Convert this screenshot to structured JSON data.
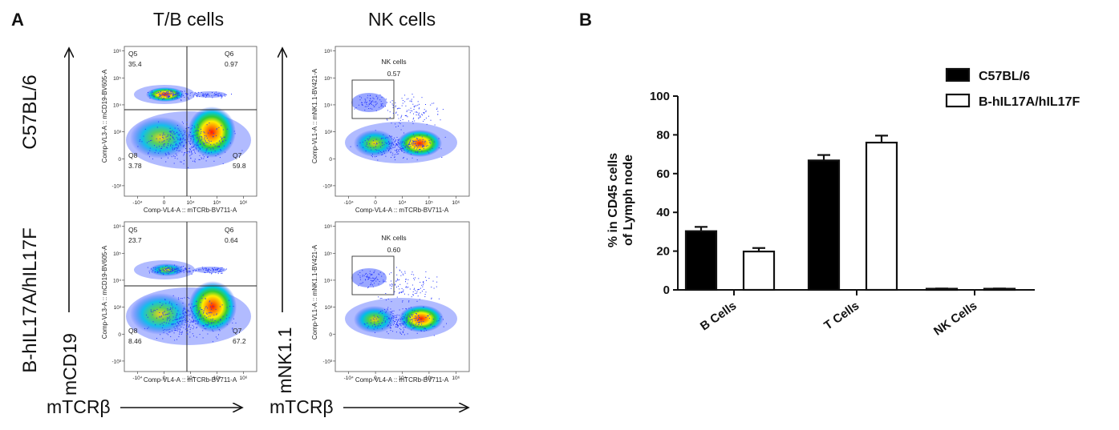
{
  "panel_a": {
    "letter": "A",
    "col_titles": [
      "T/B cells",
      "NK cells"
    ],
    "row_titles": [
      "C57BL/6",
      "B-hIL17A/hIL17F"
    ],
    "left_axis_y": "mCD19",
    "left_axis_x": "mTCRβ",
    "right_axis_y": "mNK1.1",
    "right_axis_x": "mTCRβ",
    "tb_plot": {
      "x_axis_label": "Comp-VL4-A :: mTCRb-BV711-A",
      "y_axis_label": "Comp-VL3-A :: mCD19-BV605-A",
      "x_ticks": [
        "-10⁴",
        "0",
        "10⁴",
        "10⁵",
        "10⁶"
      ],
      "y_ticks": [
        "10⁶",
        "10⁵",
        "10⁴",
        "10³",
        "0",
        "-10³"
      ]
    },
    "nk_plot": {
      "x_axis_label": "Comp-VL4-A :: mTCRb-BV711-A",
      "y_axis_label": "Comp-VL1-A :: mNK1.1-BV421-A",
      "gate_name": "NK cells",
      "x_ticks": [
        "-10⁴",
        "0",
        "10⁴",
        "10⁵",
        "10⁶"
      ],
      "y_ticks": [
        "10⁶",
        "10⁵",
        "10⁴",
        "10³",
        "0",
        "-10³"
      ]
    },
    "rows": [
      {
        "q5": {
          "name": "Q5",
          "value": "35.4"
        },
        "q6": {
          "name": "Q6",
          "value": "0.97"
        },
        "q7": {
          "name": "Q7",
          "value": "59.8"
        },
        "q8": {
          "name": "Q8",
          "value": "3.78"
        },
        "nk_value": "0.57"
      },
      {
        "q5": {
          "name": "Q5",
          "value": "23.7"
        },
        "q6": {
          "name": "Q6",
          "value": "0.64"
        },
        "q7": {
          "name": "Q7",
          "value": "67.2"
        },
        "q8": {
          "name": "Q8",
          "value": "8.46"
        },
        "nk_value": "0.60"
      }
    ]
  },
  "panel_b": {
    "letter": "B"
  },
  "chart_data": {
    "type": "bar",
    "categories": [
      "B Cells",
      "T Cells",
      "NK Cells"
    ],
    "series": [
      {
        "name": "C57BL/6",
        "values": [
          30.3,
          66.8,
          0.6
        ],
        "errors": [
          2.2,
          2.8,
          0.1
        ],
        "color": "#000000"
      },
      {
        "name": "B-hIL17A/hIL17F",
        "values": [
          19.8,
          76.0,
          0.6
        ],
        "errors": [
          1.8,
          3.6,
          0.1
        ],
        "color": "#ffffff"
      }
    ],
    "ylabel_line1": "% in CD45 cells",
    "ylabel_line2": "of Lymph node",
    "ylim": [
      0,
      100
    ],
    "yticks": [
      0,
      20,
      40,
      60,
      80,
      100
    ],
    "legend_position": "top-right"
  }
}
